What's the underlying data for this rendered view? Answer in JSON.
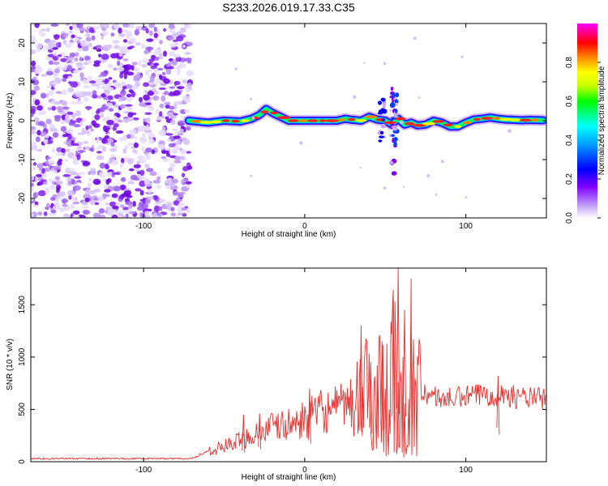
{
  "title": "S233.2026.019.17.33.C35",
  "chart_data": [
    {
      "type": "heatmap",
      "xlabel": "Height of straight line (km)",
      "ylabel": "Frequency (Hz)",
      "xlim": [
        -170,
        150
      ],
      "ylim": [
        -25,
        25
      ],
      "xticks": [
        -100,
        0,
        100
      ],
      "yticks": [
        -20,
        -10,
        0,
        10,
        20
      ],
      "colorbar": {
        "label": "Normalized spectral amplitude",
        "range": [
          0,
          1
        ],
        "ticks": [
          "0.0",
          "0.2",
          "0.4",
          "0.6",
          "0.8"
        ],
        "colors": [
          "#ffffff",
          "#c4a6f6",
          "#7f00ff",
          "#0000ff",
          "#00a0ff",
          "#00ffff",
          "#00ff00",
          "#c8ff00",
          "#ffff00",
          "#ff8000",
          "#ff0000",
          "#ff00ff"
        ]
      },
      "noise_region_x": [
        -170,
        -71
      ],
      "ridge": {
        "x": [
          -72,
          -60,
          -50,
          -40,
          -33,
          -28,
          -24,
          -20,
          -15,
          -10,
          0,
          10,
          20,
          25,
          30,
          35,
          40,
          45,
          50,
          54,
          58,
          62,
          66,
          70,
          75,
          80,
          85,
          90,
          95,
          100,
          105,
          110,
          115,
          120,
          125,
          130,
          135,
          140,
          148
        ],
        "freq": [
          0,
          -0.5,
          0,
          -0.2,
          0.5,
          1.5,
          3,
          2,
          1,
          0,
          0,
          0,
          0,
          0.5,
          0.2,
          0,
          1,
          0.3,
          0,
          -1,
          0.5,
          -1,
          -0.5,
          -1.2,
          -1,
          0,
          -0.5,
          -1.5,
          -1.5,
          -0.5,
          0.3,
          0.5,
          0.8,
          0.5,
          0.3,
          0.2,
          0.1,
          0.2,
          0.1
        ]
      }
    },
    {
      "type": "line",
      "xlabel": "Height of straight line (km)",
      "ylabel": "SNR (10 * v/v)",
      "xlim": [
        -170,
        150
      ],
      "ylim": [
        0,
        1850
      ],
      "xticks": [
        -100,
        0,
        100
      ],
      "yticks": [
        0,
        500,
        1000,
        1500
      ],
      "color": "#e8302f",
      "envelope_x": [
        -170,
        -100,
        -70,
        -60,
        -50,
        -40,
        -30,
        -20,
        -10,
        0,
        10,
        20,
        30,
        40,
        50,
        55,
        60,
        65,
        70,
        80,
        90,
        100,
        110,
        120,
        130,
        140,
        150
      ],
      "envelope_y": [
        30,
        30,
        30,
        100,
        150,
        200,
        280,
        330,
        350,
        400,
        480,
        500,
        560,
        650,
        750,
        900,
        1200,
        1000,
        700,
        620,
        600,
        620,
        640,
        650,
        620,
        610,
        600
      ],
      "peaks": [
        {
          "x": 35,
          "y": 1300
        },
        {
          "x": 41,
          "y": 950
        },
        {
          "x": 48,
          "y": 1150
        },
        {
          "x": 55,
          "y": 1500
        },
        {
          "x": 58,
          "y": 1850
        },
        {
          "x": 62,
          "y": 1450
        },
        {
          "x": 66,
          "y": 1350
        },
        {
          "x": -38,
          "y": 450
        },
        {
          "x": -28,
          "y": 460
        },
        {
          "x": 3,
          "y": 700
        },
        {
          "x": 120,
          "y": 820
        }
      ]
    }
  ]
}
